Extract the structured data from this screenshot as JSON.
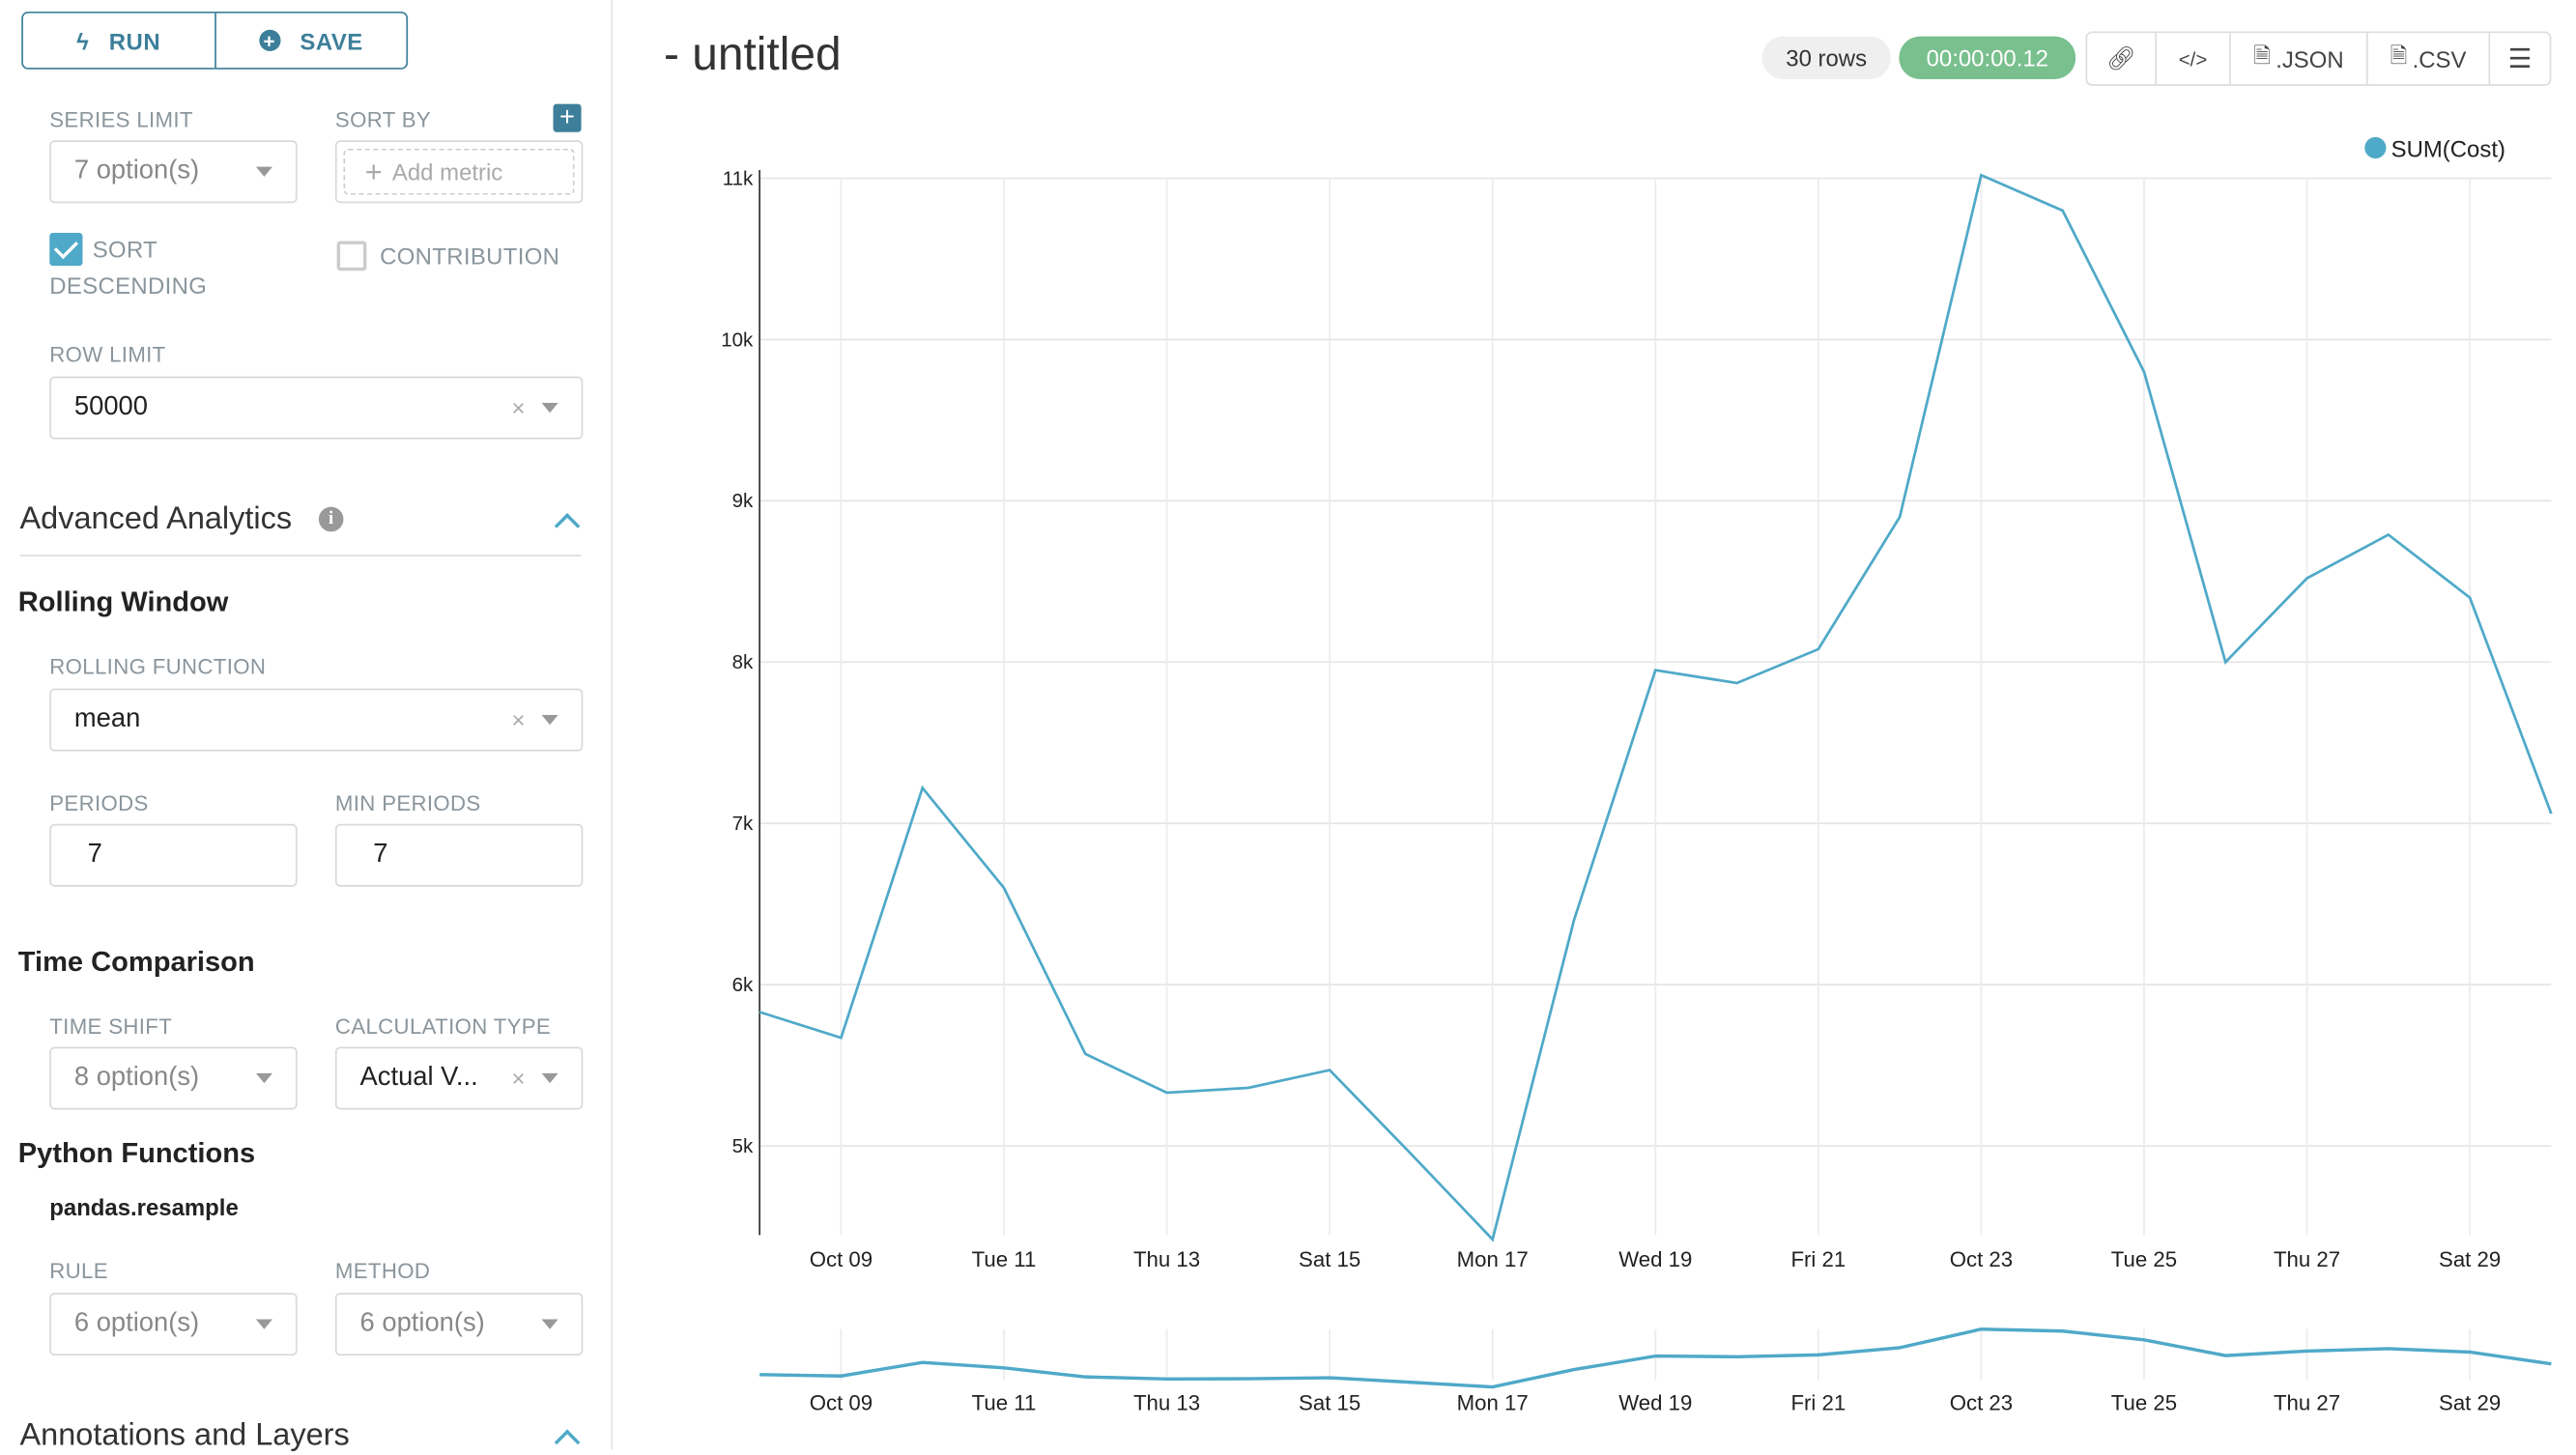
{
  "toolbar": {
    "run_label": "RUN",
    "save_label": "SAVE"
  },
  "controls": {
    "series_limit": {
      "label": "SERIES LIMIT",
      "value": "7 option(s)"
    },
    "sort_by": {
      "label": "SORT BY",
      "placeholder": "Add metric"
    },
    "sort_descending": {
      "label_line1": "SORT",
      "label_line2": "DESCENDING",
      "checked": true
    },
    "contribution": {
      "label": "CONTRIBUTION",
      "checked": false
    },
    "row_limit": {
      "label": "ROW LIMIT",
      "value": "50000"
    }
  },
  "advanced_analytics": {
    "title": "Advanced Analytics",
    "rolling_window": {
      "title": "Rolling Window",
      "rolling_function": {
        "label": "ROLLING FUNCTION",
        "value": "mean"
      },
      "periods": {
        "label": "PERIODS",
        "value": "7"
      },
      "min_periods": {
        "label": "MIN PERIODS",
        "value": "7"
      }
    },
    "time_comparison": {
      "title": "Time Comparison",
      "time_shift": {
        "label": "TIME SHIFT",
        "value": "8 option(s)"
      },
      "calculation_type": {
        "label": "CALCULATION TYPE",
        "value": "Actual V..."
      }
    },
    "python_functions": {
      "title": "Python Functions",
      "subtitle": "pandas.resample",
      "rule": {
        "label": "RULE",
        "value": "6 option(s)"
      },
      "method": {
        "label": "METHOD",
        "value": "6 option(s)"
      }
    }
  },
  "annotations": {
    "title": "Annotations and Layers"
  },
  "header": {
    "title": "- untitled",
    "rows": "30 rows",
    "duration": "00:00:00.12",
    "json_label": ".JSON",
    "csv_label": ".CSV"
  },
  "colors": {
    "accent": "#3d7f9a",
    "series": "#4fa9c8",
    "success": "#79c08e"
  },
  "chart_data": {
    "type": "line",
    "x": [
      "Oct 08",
      "Oct 09",
      "Oct 10",
      "Oct 11",
      "Oct 12",
      "Oct 13",
      "Oct 14",
      "Oct 15",
      "Oct 16",
      "Oct 17",
      "Oct 18",
      "Oct 19",
      "Oct 20",
      "Oct 21",
      "Oct 22",
      "Oct 23",
      "Oct 24",
      "Oct 25",
      "Oct 26",
      "Oct 27",
      "Oct 28",
      "Oct 29",
      "Oct 30"
    ],
    "series": [
      {
        "name": "SUM(Cost)",
        "values": [
          5830,
          5670,
          7220,
          6600,
          5570,
          5330,
          5360,
          5470,
          4950,
          4420,
          6400,
          7950,
          7870,
          8080,
          8900,
          11020,
          10800,
          9800,
          8000,
          8520,
          8790,
          8400,
          7060
        ]
      }
    ],
    "x_tick_labels": [
      "Oct 09",
      "Tue 11",
      "Thu 13",
      "Sat 15",
      "Mon 17",
      "Wed 19",
      "Fri 21",
      "Oct 23",
      "Tue 25",
      "Thu 27",
      "Sat 29"
    ],
    "y_ticks": [
      5000,
      6000,
      7000,
      8000,
      9000,
      10000,
      11000
    ],
    "y_tick_labels": [
      "5k",
      "6k",
      "7k",
      "8k",
      "9k",
      "10k",
      "11k"
    ],
    "ylim": [
      4420,
      11020
    ],
    "grid": true,
    "legend": "top-right",
    "brush": true
  }
}
